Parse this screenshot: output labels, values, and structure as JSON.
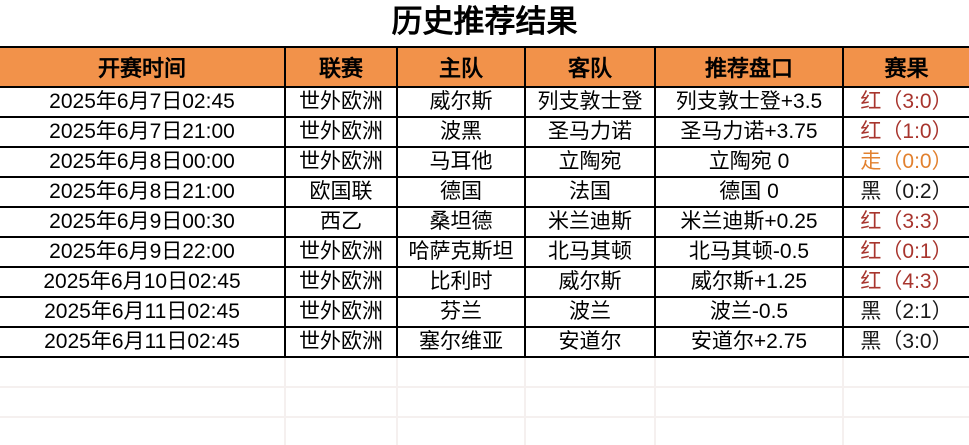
{
  "title": "历史推荐结果",
  "colors": {
    "header_bg": "#f2924a",
    "border": "#000000",
    "empty_grid": "#f5f0ef",
    "win": "#a8352e",
    "push": "#e2812f",
    "loss": "#1a1a1a"
  },
  "table": {
    "columns": [
      "开赛时间",
      "联赛",
      "主队",
      "客队",
      "推荐盘口",
      "赛果"
    ],
    "rows": [
      {
        "kickoff": "2025年6月7日02:45",
        "league": "世外欧洲",
        "home": "威尔斯",
        "away": "列支敦士登",
        "handicap": "列支敦士登+3.5",
        "result": "红（3:0）",
        "result_color": "win"
      },
      {
        "kickoff": "2025年6月7日21:00",
        "league": "世外欧洲",
        "home": "波黑",
        "away": "圣马力诺",
        "handicap": "圣马力诺+3.75",
        "result": "红（1:0）",
        "result_color": "win"
      },
      {
        "kickoff": "2025年6月8日00:00",
        "league": "世外欧洲",
        "home": "马耳他",
        "away": "立陶宛",
        "handicap": "立陶宛 0",
        "result": "走（0:0）",
        "result_color": "push"
      },
      {
        "kickoff": "2025年6月8日21:00",
        "league": "欧国联",
        "home": "德国",
        "away": "法国",
        "handicap": "德国 0",
        "result": "黑（0:2）",
        "result_color": "loss"
      },
      {
        "kickoff": "2025年6月9日00:30",
        "league": "西乙",
        "home": "桑坦德",
        "away": "米兰迪斯",
        "handicap": "米兰迪斯+0.25",
        "result": "红（3:3）",
        "result_color": "win"
      },
      {
        "kickoff": "2025年6月9日22:00",
        "league": "世外欧洲",
        "home": "哈萨克斯坦",
        "away": "北马其顿",
        "handicap": "北马其顿-0.5",
        "result": "红（0:1）",
        "result_color": "win"
      },
      {
        "kickoff": "2025年6月10日02:45",
        "league": "世外欧洲",
        "home": "比利时",
        "away": "威尔斯",
        "handicap": "威尔斯+1.25",
        "result": "红（4:3）",
        "result_color": "win"
      },
      {
        "kickoff": "2025年6月11日02:45",
        "league": "世外欧洲",
        "home": "芬兰",
        "away": "波兰",
        "handicap": "波兰-0.5",
        "result": "黑（2:1）",
        "result_color": "loss"
      },
      {
        "kickoff": "2025年6月11日02:45",
        "league": "世外欧洲",
        "home": "塞尔维亚",
        "away": "安道尔",
        "handicap": "安道尔+2.75",
        "result": "黑（3:0）",
        "result_color": "loss"
      }
    ],
    "empty_rows": 3
  }
}
